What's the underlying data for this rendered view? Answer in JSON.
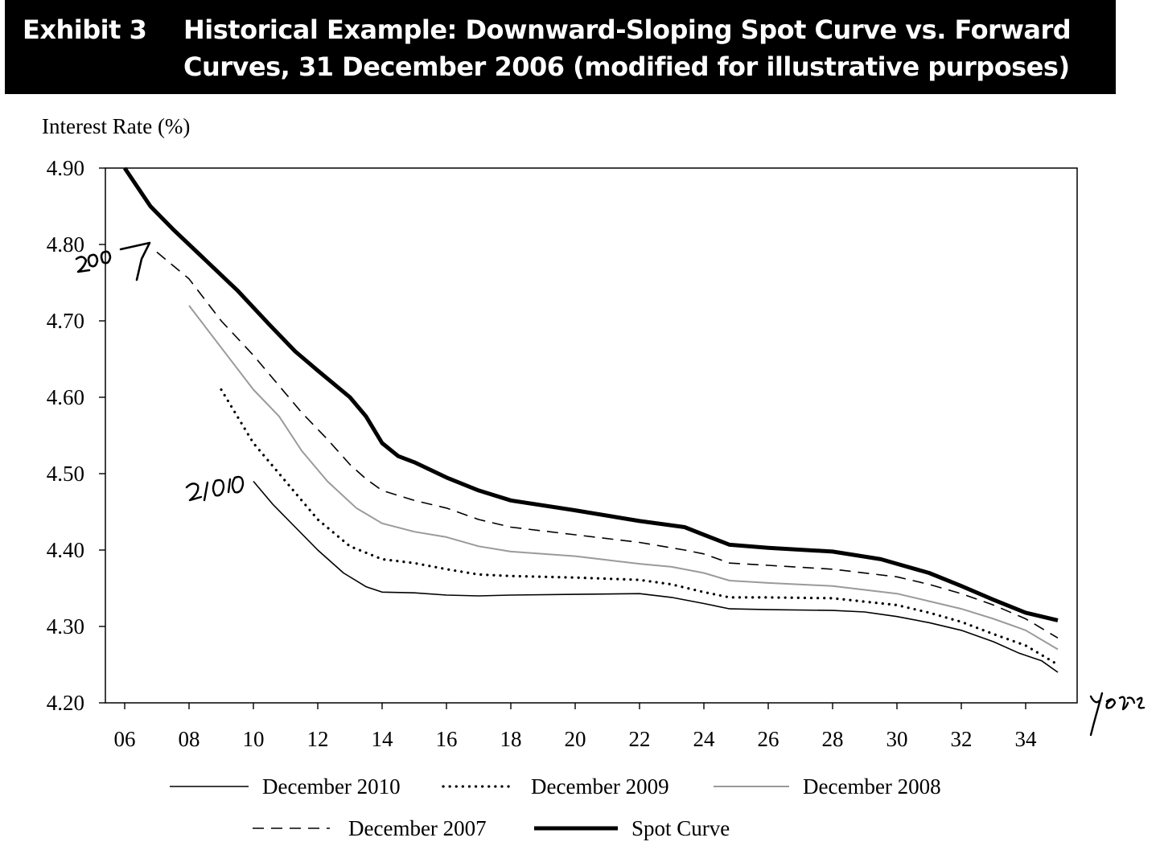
{
  "header": {
    "exhibit": "Exhibit 3",
    "title": "Historical Example: Downward-Sloping Spot Curve vs. Forward Curves, 31 December 2006 (modified for illustrative purposes)"
  },
  "annotations": {
    "handwritten": [
      "2007",
      "2010",
      "years"
    ]
  },
  "chart_data": {
    "type": "line",
    "title": "Historical Example: Downward-Sloping Spot Curve vs. Forward Curves, 31 December 2006 (modified for illustrative purposes)",
    "ylabel": "Interest Rate (%)",
    "xlabel": "",
    "ylim": [
      4.2,
      4.9
    ],
    "xlim": [
      5.4,
      35.6
    ],
    "x_ticks": [
      "06",
      "08",
      "10",
      "12",
      "14",
      "16",
      "18",
      "20",
      "22",
      "24",
      "26",
      "28",
      "30",
      "32",
      "34"
    ],
    "y_ticks": [
      "4.20",
      "4.30",
      "4.40",
      "4.50",
      "4.60",
      "4.70",
      "4.80",
      "4.90"
    ],
    "grid": false,
    "legend_position": "bottom",
    "series": [
      {
        "name": "December 2010",
        "style": "thin-solid",
        "color": "#000000",
        "points": [
          [
            10,
            4.49
          ],
          [
            10.6,
            4.46
          ],
          [
            11.3,
            4.43
          ],
          [
            12,
            4.4
          ],
          [
            12.8,
            4.37
          ],
          [
            13.5,
            4.352
          ],
          [
            14,
            4.345
          ],
          [
            15,
            4.344
          ],
          [
            16,
            4.341
          ],
          [
            17,
            4.34
          ],
          [
            18,
            4.341
          ],
          [
            20,
            4.342
          ],
          [
            22,
            4.343
          ],
          [
            23,
            4.338
          ],
          [
            24,
            4.33
          ],
          [
            24.8,
            4.323
          ],
          [
            26,
            4.322
          ],
          [
            28,
            4.321
          ],
          [
            29,
            4.319
          ],
          [
            30,
            4.313
          ],
          [
            31,
            4.305
          ],
          [
            32,
            4.295
          ],
          [
            33,
            4.28
          ],
          [
            33.8,
            4.265
          ],
          [
            34.5,
            4.255
          ],
          [
            35,
            4.24
          ]
        ]
      },
      {
        "name": "December 2009",
        "style": "dotted",
        "color": "#000000",
        "points": [
          [
            9,
            4.61
          ],
          [
            10,
            4.54
          ],
          [
            11,
            4.49
          ],
          [
            12,
            4.44
          ],
          [
            13,
            4.405
          ],
          [
            14,
            4.388
          ],
          [
            15,
            4.383
          ],
          [
            16,
            4.375
          ],
          [
            17,
            4.368
          ],
          [
            18,
            4.366
          ],
          [
            20,
            4.364
          ],
          [
            22,
            4.361
          ],
          [
            23,
            4.355
          ],
          [
            24,
            4.345
          ],
          [
            24.8,
            4.338
          ],
          [
            26,
            4.338
          ],
          [
            28,
            4.337
          ],
          [
            30,
            4.328
          ],
          [
            31,
            4.318
          ],
          [
            32,
            4.306
          ],
          [
            33,
            4.29
          ],
          [
            34,
            4.275
          ],
          [
            35,
            4.25
          ]
        ]
      },
      {
        "name": "December 2008",
        "style": "gray",
        "color": "#9a9a9a",
        "points": [
          [
            8,
            4.72
          ],
          [
            9,
            4.665
          ],
          [
            10,
            4.61
          ],
          [
            10.8,
            4.575
          ],
          [
            11.5,
            4.53
          ],
          [
            12.3,
            4.49
          ],
          [
            13.2,
            4.455
          ],
          [
            14,
            4.435
          ],
          [
            15,
            4.424
          ],
          [
            16,
            4.417
          ],
          [
            17,
            4.405
          ],
          [
            18,
            4.398
          ],
          [
            20,
            4.392
          ],
          [
            21,
            4.387
          ],
          [
            22,
            4.382
          ],
          [
            23,
            4.378
          ],
          [
            24,
            4.37
          ],
          [
            24.8,
            4.36
          ],
          [
            26,
            4.357
          ],
          [
            28,
            4.353
          ],
          [
            30,
            4.343
          ],
          [
            31,
            4.333
          ],
          [
            32,
            4.323
          ],
          [
            33,
            4.31
          ],
          [
            34,
            4.295
          ],
          [
            35,
            4.27
          ]
        ]
      },
      {
        "name": "December 2007",
        "style": "dashed",
        "color": "#000000",
        "points": [
          [
            7,
            4.79
          ],
          [
            8,
            4.755
          ],
          [
            9,
            4.7
          ],
          [
            10,
            4.655
          ],
          [
            10.8,
            4.615
          ],
          [
            11.5,
            4.58
          ],
          [
            12.3,
            4.545
          ],
          [
            13,
            4.512
          ],
          [
            13.5,
            4.493
          ],
          [
            14,
            4.478
          ],
          [
            15,
            4.465
          ],
          [
            16,
            4.455
          ],
          [
            17,
            4.44
          ],
          [
            18,
            4.43
          ],
          [
            20,
            4.42
          ],
          [
            22,
            4.41
          ],
          [
            23.4,
            4.4
          ],
          [
            24,
            4.395
          ],
          [
            24.8,
            4.383
          ],
          [
            26,
            4.38
          ],
          [
            28,
            4.375
          ],
          [
            30,
            4.365
          ],
          [
            31,
            4.355
          ],
          [
            32,
            4.343
          ],
          [
            33,
            4.328
          ],
          [
            34,
            4.31
          ],
          [
            35,
            4.285
          ]
        ]
      },
      {
        "name": "Spot Curve",
        "style": "thick-solid",
        "color": "#000000",
        "points": [
          [
            6,
            4.9
          ],
          [
            6.8,
            4.85
          ],
          [
            7.5,
            4.82
          ],
          [
            8.5,
            4.78
          ],
          [
            9.5,
            4.74
          ],
          [
            10.5,
            4.695
          ],
          [
            11.3,
            4.66
          ],
          [
            12,
            4.635
          ],
          [
            13,
            4.6
          ],
          [
            13.5,
            4.575
          ],
          [
            14,
            4.54
          ],
          [
            14.5,
            4.523
          ],
          [
            15,
            4.515
          ],
          [
            16,
            4.495
          ],
          [
            17,
            4.478
          ],
          [
            18,
            4.465
          ],
          [
            20,
            4.452
          ],
          [
            22,
            4.438
          ],
          [
            23.4,
            4.43
          ],
          [
            24,
            4.42
          ],
          [
            24.8,
            4.407
          ],
          [
            26,
            4.403
          ],
          [
            28,
            4.398
          ],
          [
            29.5,
            4.388
          ],
          [
            30,
            4.382
          ],
          [
            31,
            4.37
          ],
          [
            32,
            4.353
          ],
          [
            33,
            4.335
          ],
          [
            34,
            4.318
          ],
          [
            35,
            4.308
          ]
        ]
      }
    ]
  }
}
